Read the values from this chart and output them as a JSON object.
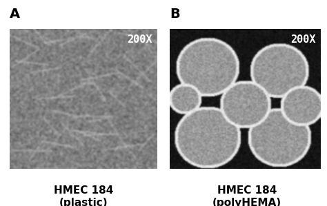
{
  "panel_A_label": "A",
  "panel_B_label": "B",
  "magnification": "200X",
  "caption_A_line1": "HMEC 184",
  "caption_A_line2": "(plastic)",
  "caption_B_line1": "HMEC 184",
  "caption_B_line2": "(polyHEMA)",
  "bg_color": "#ffffff",
  "panel_A_bg": "#888888",
  "panel_B_bg": "#111111",
  "label_fontsize": 14,
  "caption_fontsize": 11,
  "mag_fontsize": 11,
  "figure_width": 4.74,
  "figure_height": 2.99
}
